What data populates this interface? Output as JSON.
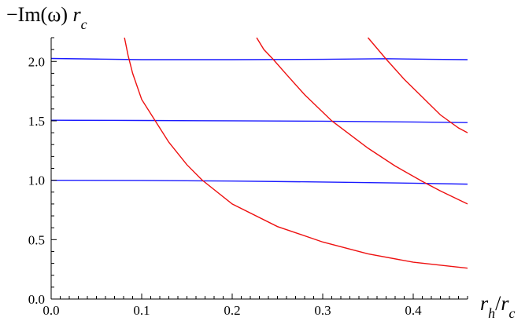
{
  "chart_data": {
    "type": "line",
    "title": "",
    "ylabel": "−Im(ω) r_c",
    "xlabel": "r_h/r_c",
    "xlim": [
      0.0,
      0.46
    ],
    "ylim": [
      0.0,
      2.2
    ],
    "x_ticks": [
      "0.0",
      "0.1",
      "0.2",
      "0.3",
      "0.4"
    ],
    "y_ticks": [
      "0.0",
      "0.5",
      "1.0",
      "1.5",
      "2.0"
    ],
    "grid": false,
    "series": [
      {
        "color": "#1a1aff",
        "x": [
          0.0,
          0.1,
          0.2,
          0.3,
          0.4,
          0.46
        ],
        "y": [
          1.0,
          0.998,
          0.993,
          0.985,
          0.975,
          0.967
        ]
      },
      {
        "color": "#1a1aff",
        "x": [
          0.0,
          0.1,
          0.2,
          0.3,
          0.4,
          0.46
        ],
        "y": [
          1.505,
          1.503,
          1.5,
          1.497,
          1.49,
          1.485
        ]
      },
      {
        "color": "#1a1aff",
        "x": [
          0.0,
          0.05,
          0.1,
          0.2,
          0.3,
          0.37,
          0.42,
          0.46
        ],
        "y": [
          2.025,
          2.02,
          2.015,
          2.015,
          2.018,
          2.023,
          2.018,
          2.015
        ]
      },
      {
        "color": "#ee1111",
        "x": [
          0.081,
          0.085,
          0.09,
          0.1,
          0.115,
          0.13,
          0.15,
          0.167,
          0.2,
          0.25,
          0.3,
          0.35,
          0.4,
          0.46
        ],
        "y": [
          2.2,
          2.05,
          1.9,
          1.68,
          1.5,
          1.32,
          1.13,
          1.0,
          0.8,
          0.61,
          0.48,
          0.38,
          0.31,
          0.26
        ]
      },
      {
        "color": "#ee1111",
        "x": [
          0.227,
          0.235,
          0.245,
          0.26,
          0.28,
          0.31,
          0.35,
          0.38,
          0.41,
          0.43,
          0.46
        ],
        "y": [
          2.2,
          2.1,
          2.02,
          1.89,
          1.72,
          1.5,
          1.27,
          1.12,
          0.99,
          0.91,
          0.8
        ]
      },
      {
        "color": "#ee1111",
        "x": [
          0.35,
          0.36,
          0.37,
          0.39,
          0.41,
          0.43,
          0.45,
          0.46
        ],
        "y": [
          2.2,
          2.11,
          2.02,
          1.85,
          1.7,
          1.55,
          1.44,
          1.4
        ]
      }
    ]
  }
}
